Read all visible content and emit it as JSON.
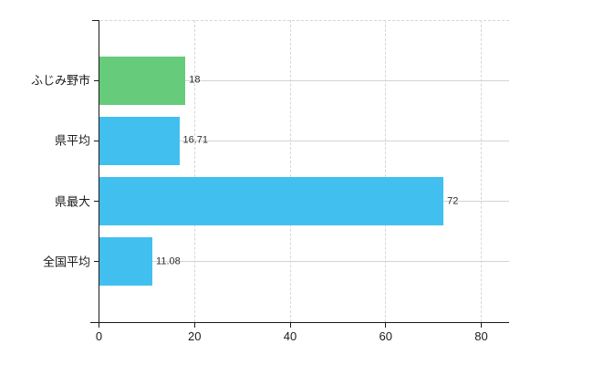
{
  "chart": {
    "background": "#ffffff",
    "axis_color": "#1a1a1a",
    "grid_color": "#d4d4d4",
    "grid_dashed_color": "#d6d6d6",
    "label_color": "#1c1c1c",
    "value_label_color": "#2e2e2e"
  },
  "chart_data": {
    "type": "bar",
    "orientation": "horizontal",
    "title": "",
    "xlabel": "",
    "ylabel": "",
    "categories": [
      "ふじみ野市",
      "県平均",
      "県最大",
      "全国平均"
    ],
    "values": [
      18,
      16.71,
      72,
      11.08
    ],
    "value_labels": [
      "18",
      "16.71",
      "72",
      "11.08"
    ],
    "bar_colors": [
      "#66cb7b",
      "#41c0f0",
      "#41c0f0",
      "#41c0f0"
    ],
    "xlim": [
      0,
      86
    ],
    "x_ticks": [
      0,
      20,
      40,
      60,
      80
    ],
    "x_tick_labels": [
      "0",
      "20",
      "40",
      "60",
      "80"
    ],
    "grid": true,
    "legend": false
  }
}
